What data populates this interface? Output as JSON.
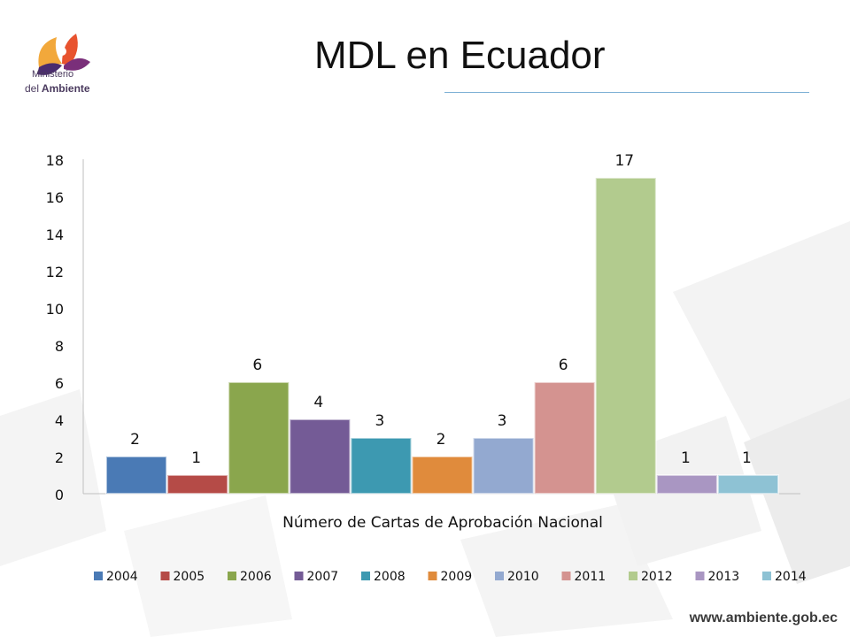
{
  "page": {
    "title": "MDL en Ecuador",
    "logo": {
      "line1": "Ministerio",
      "line2a": "del",
      "line2b": "Ambiente"
    },
    "footer_url": "www.ambiente.gob.ec"
  },
  "chart_data": {
    "type": "bar",
    "title": "",
    "xlabel": "Número de Cartas de Aprobación Nacional",
    "ylabel": "",
    "ylim": [
      0,
      18
    ],
    "yticks": [
      0,
      2,
      4,
      6,
      8,
      10,
      12,
      14,
      16,
      18
    ],
    "legend_position": "bottom",
    "grid": false,
    "series": [
      {
        "name": "2004",
        "value": 2,
        "color": "#4a7ab5"
      },
      {
        "name": "2005",
        "value": 1,
        "color": "#b54b47"
      },
      {
        "name": "2006",
        "value": 6,
        "color": "#8aa64d"
      },
      {
        "name": "2007",
        "value": 4,
        "color": "#745b96"
      },
      {
        "name": "2008",
        "value": 3,
        "color": "#3d99b1"
      },
      {
        "name": "2009",
        "value": 2,
        "color": "#e08b3c"
      },
      {
        "name": "2010",
        "value": 3,
        "color": "#93a9d0"
      },
      {
        "name": "2011",
        "value": 6,
        "color": "#d49390"
      },
      {
        "name": "2012",
        "value": 17,
        "color": "#b2cb8e"
      },
      {
        "name": "2013",
        "value": 1,
        "color": "#a996c2"
      },
      {
        "name": "2014",
        "value": 1,
        "color": "#8ec2d4"
      }
    ]
  }
}
